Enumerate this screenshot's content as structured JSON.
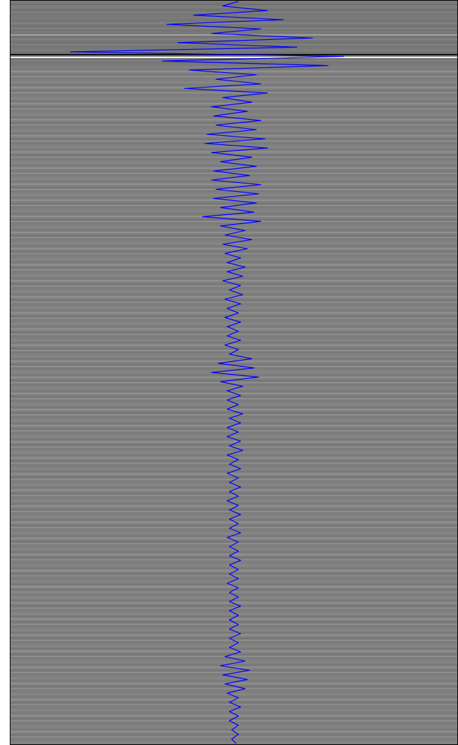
{
  "chart_data": {
    "type": "line",
    "orientation": "vertical",
    "color": "#0000ff",
    "xlim": [
      -1,
      1
    ],
    "values": [
      0.02,
      -0.05,
      0.15,
      -0.18,
      0.22,
      -0.3,
      0.12,
      -0.1,
      0.35,
      -0.25,
      0.28,
      -0.73,
      0.49,
      -0.32,
      0.42,
      -0.2,
      0.1,
      -0.08,
      0.12,
      -0.22,
      0.15,
      -0.05,
      0.08,
      -0.1,
      0.06,
      -0.09,
      0.12,
      -0.08,
      0.1,
      -0.12,
      0.14,
      -0.13,
      0.15,
      -0.1,
      0.08,
      -0.06,
      0.1,
      -0.09,
      0.07,
      -0.1,
      0.12,
      -0.08,
      0.11,
      -0.09,
      0.1,
      -0.06,
      0.09,
      -0.14,
      0.12,
      -0.06,
      0.05,
      -0.04,
      0.08,
      -0.05,
      0.06,
      -0.04,
      0.03,
      -0.03,
      0.05,
      -0.03,
      0.04,
      -0.05,
      0.03,
      -0.02,
      0.04,
      -0.04,
      0.03,
      -0.03,
      0.02,
      -0.04,
      0.03,
      -0.03,
      0.02,
      -0.03,
      0.03,
      -0.04,
      0.02,
      -0.02,
      0.08,
      -0.07,
      0.09,
      -0.1,
      0.11,
      -0.06,
      0.04,
      -0.03,
      0.03,
      -0.03,
      0.02,
      -0.03,
      0.04,
      -0.02,
      0.03,
      -0.03,
      0.02,
      -0.03,
      0.03,
      -0.02,
      0.04,
      -0.03,
      0.02,
      -0.02,
      0.03,
      -0.03,
      0.02,
      -0.02,
      0.03,
      -0.02,
      0.02,
      -0.03,
      0.02,
      -0.02,
      0.03,
      -0.02,
      0.02,
      -0.02,
      0.03,
      -0.03,
      0.02,
      -0.02,
      0.02,
      -0.02,
      0.03,
      -0.02,
      0.02,
      -0.02,
      0.02,
      -0.03,
      0.02,
      -0.02,
      0.02,
      -0.02,
      0.03,
      -0.02,
      0.02,
      -0.02,
      0.02,
      -0.02,
      0.03,
      -0.02,
      0.02,
      -0.02,
      0.03,
      -0.04,
      0.05,
      -0.06,
      0.07,
      -0.05,
      0.06,
      -0.04,
      0.05,
      -0.03,
      0.02,
      -0.02,
      0.03,
      -0.02,
      0.02,
      -0.02,
      0.02,
      -0.01,
      0.02,
      -0.01,
      0.01
    ]
  }
}
